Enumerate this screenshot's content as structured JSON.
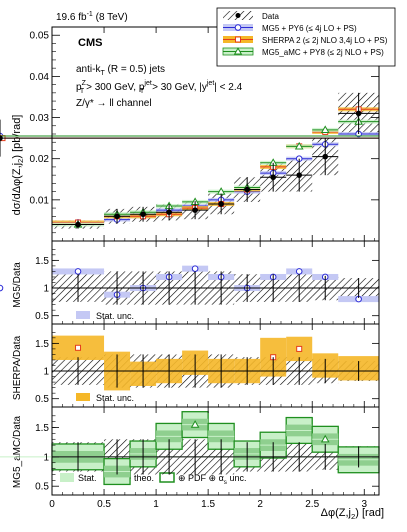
{
  "header": {
    "lumi": "19.6 fb",
    "lumi_exp": "-1",
    "energy": "(8 TeV)",
    "experiment": "CMS"
  },
  "cuts": {
    "line1": "anti-k",
    "line1_sub": "T",
    "line1_rest": "(R = 0.5) jets",
    "line2": "p",
    "line2_pt_sup": "Z",
    "line2_pt_sub": "T",
    "line2_a": "> 300 GeV, p",
    "line2_jet_sup": "jet",
    "line2_jet_sub": "T",
    "line2_b": "> 30 GeV, |y",
    "line2_y_sup": "jet",
    "line2_c": "| < 2.4",
    "line3": "Z/γ* → ll channel"
  },
  "legend": {
    "entries": [
      {
        "label": "Data",
        "color": "#000000",
        "marker": "circle-filled"
      },
      {
        "label": "MG5 + PY6 (≤ 4j LO + PS)",
        "color": "#2b2bd6",
        "marker": "circle-open"
      },
      {
        "label": "SHERPA 2 (≤ 2j NLO 3,4j LO + PS)",
        "color": "#e43d1b",
        "marker": "square-open"
      },
      {
        "label": "MG5_aMC + PY8 (≤ 2j NLO + PS)",
        "color": "#1f8f1f",
        "marker": "triangle-open"
      }
    ]
  },
  "ratio_labels": {
    "mg5": "MG5/Data",
    "sherpa": "SHERPA/Data",
    "amc": "MG5_aMC/Data",
    "mg5_unc": "Stat. unc.",
    "sherpa_unc": "Stat. unc.",
    "amc_stat": "Stat.",
    "amc_theo": "⊕ theo.",
    "amc_pdf": "⊕ PDF ⊕ α",
    "amc_pdf_sub": "s",
    "amc_pdf_rest": "unc."
  },
  "axes": {
    "ylabel_main": "dσ/dΔφ(Z,j",
    "ylabel_sub": "2",
    "ylabel_rest": ") [pb/rad]",
    "xlabel": "Δφ(Z,j",
    "xlabel_sub": "2",
    "xlabel_rest": ") [rad]",
    "x_ticks": [
      "0",
      "0.5",
      "1",
      "1.5",
      "2",
      "2.5",
      "3"
    ],
    "y_main_ticks": [
      "0.01",
      "0.02",
      "0.03",
      "0.04",
      "0.05"
    ],
    "y_ratio_ticks": [
      "0.5",
      "1",
      "1.5"
    ]
  },
  "chart_data": {
    "type": "line",
    "x_range": [
      0,
      3.1416
    ],
    "main": {
      "ylim": [
        0,
        0.052
      ],
      "bins": [
        0,
        0.5,
        0.75,
        1.0,
        1.25,
        1.5,
        1.75,
        2.0,
        2.25,
        2.5,
        2.75,
        3.1416
      ],
      "data": [
        0.004,
        0.006,
        0.0065,
        0.007,
        0.0075,
        0.009,
        0.0125,
        0.0155,
        0.016,
        0.0205,
        0.031,
        0.025
      ],
      "data_err": [
        0.001,
        0.0018,
        0.0018,
        0.002,
        0.0022,
        0.0025,
        0.003,
        0.0035,
        0.004,
        0.0045,
        0.005,
        0.0045
      ],
      "mg5": [
        0.0045,
        0.0052,
        0.006,
        0.0075,
        0.0085,
        0.01,
        0.012,
        0.0165,
        0.02,
        0.0235,
        0.026,
        0.0255
      ],
      "sherpa": [
        0.0045,
        0.006,
        0.006,
        0.0065,
        0.008,
        0.009,
        0.0125,
        0.018,
        0.023,
        0.0265,
        0.032,
        0.025
      ],
      "amc": [
        0.004,
        0.0065,
        0.007,
        0.0085,
        0.0095,
        0.012,
        0.013,
        0.019,
        0.023,
        0.027,
        0.029,
        0.0255
      ]
    },
    "ratio_ylim": [
      0.35,
      1.85
    ],
    "mg5_ratio": [
      1.3,
      0.88,
      1.0,
      1.2,
      1.35,
      1.2,
      1.0,
      1.2,
      1.3,
      1.2,
      0.8,
      1.0
    ],
    "sherpa_ratio": [
      1.42,
      1.0,
      0.95,
      1.0,
      1.15,
      1.0,
      1.0,
      1.25,
      1.4,
      1.1,
      1.05,
      1.0
    ],
    "amc_ratio": [
      1.0,
      0.75,
      1.05,
      1.35,
      1.55,
      1.35,
      1.05,
      1.2,
      1.45,
      1.3,
      0.95,
      1.0
    ],
    "data_rel_err": [
      0.25,
      0.3,
      0.3,
      0.3,
      0.3,
      0.3,
      0.25,
      0.25,
      0.25,
      0.22,
      0.18,
      0.18
    ]
  }
}
